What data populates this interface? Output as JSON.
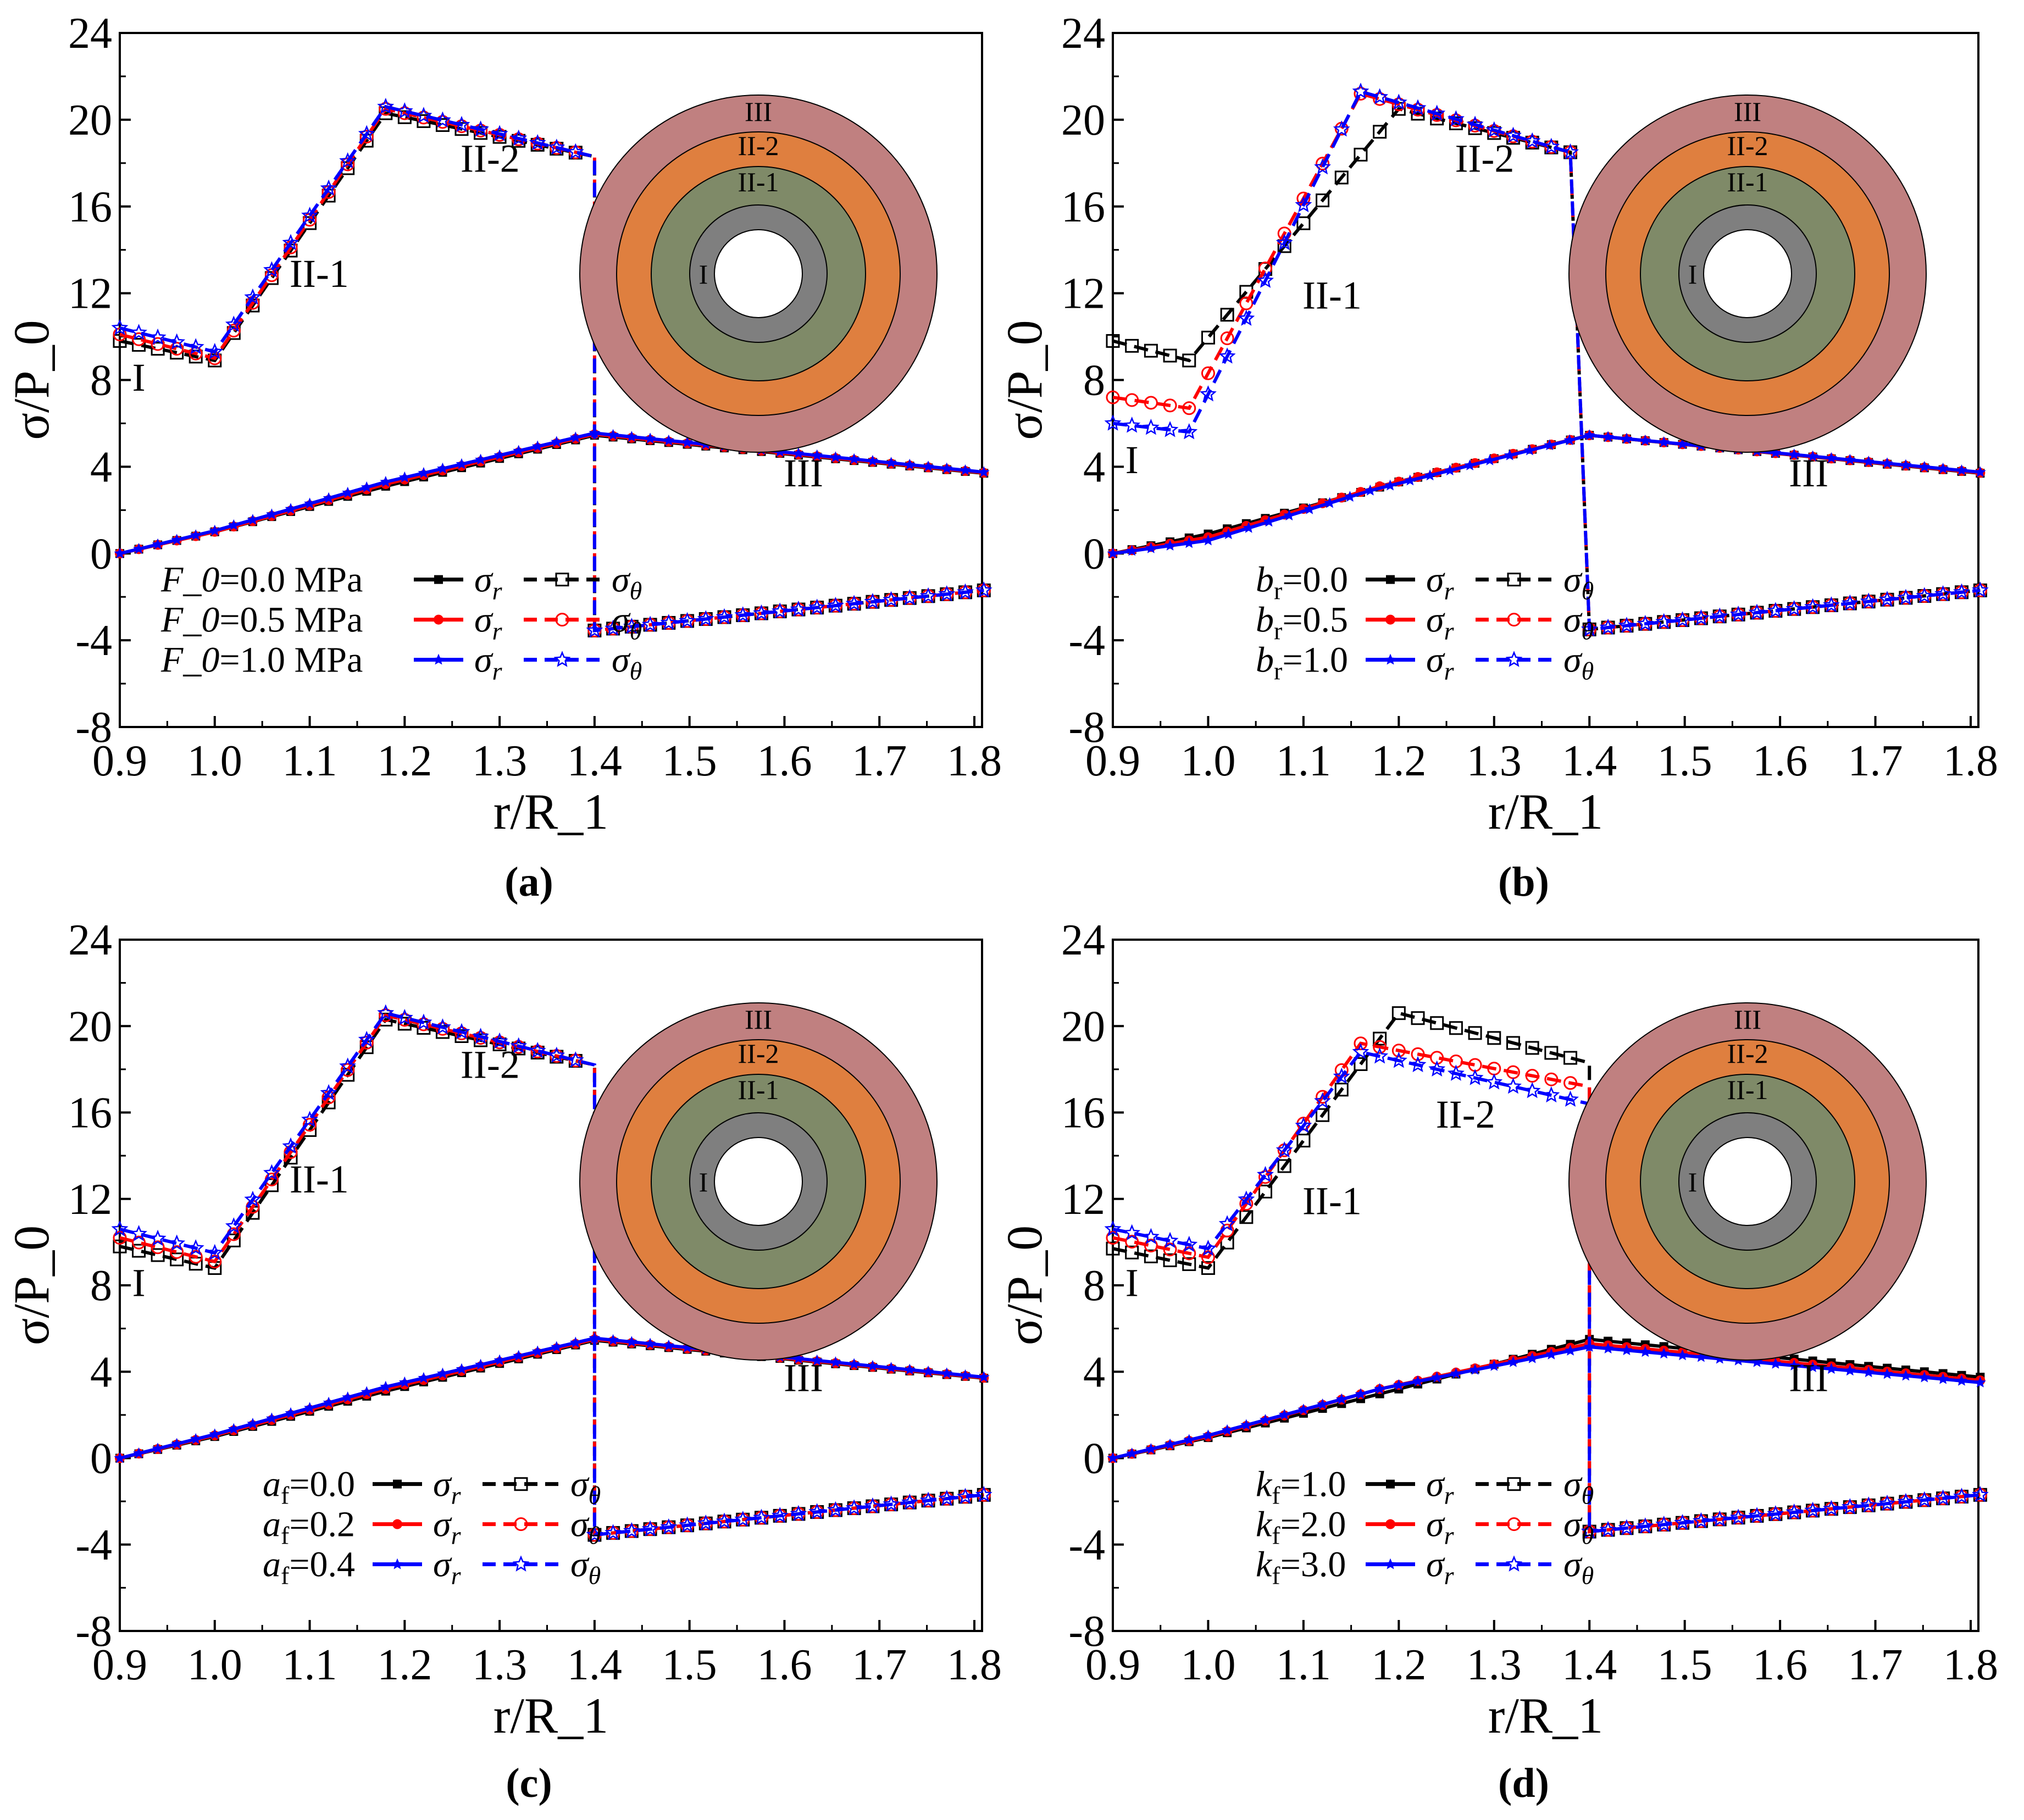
{
  "colors": {
    "black": "#000000",
    "red": "#ff0000",
    "blue": "#0000ff",
    "ring_III": "#c08080",
    "ring_II2": "#df7f3f",
    "ring_II1": "#7f8a68",
    "ring_I": "#7f7f7f"
  },
  "chart_data": [
    {
      "id": "a",
      "type": "line",
      "caption": "(a)",
      "xlabel": "r/R_1",
      "ylabel": "σ/P_0",
      "xlim": [
        0.9,
        1.8
      ],
      "ylim": [
        -8,
        24
      ],
      "xticks": [
        "0.9",
        "1.0",
        "1.1",
        "1.2",
        "1.3",
        "1.4",
        "1.5",
        "1.6",
        "1.7",
        "1.8"
      ],
      "yticks": [
        "-8",
        "-4",
        "0",
        "4",
        "8",
        "12",
        "16",
        "20",
        "24"
      ],
      "regions": [
        "I",
        "II-1",
        "II-2",
        "III"
      ],
      "legend": {
        "position": "bottom-left",
        "param": "F_0",
        "sub": "",
        "sr": "σ",
        "sr_sub": "r",
        "st": "σ",
        "st_sub": "θ",
        "entries": [
          {
            "value": "=0.0 MPa"
          },
          {
            "value": "=0.5 MPa"
          },
          {
            "value": "=1.0 MPa"
          }
        ]
      },
      "series": [
        {
          "name": "F_0=0.0 MPa",
          "color": "#000000",
          "marker": "square",
          "sigma_r": {
            "x": [
              0.9,
              1.0,
              1.18,
              1.4,
              1.81
            ],
            "y": [
              0,
              1.0,
              3.1,
              5.45,
              3.7
            ]
          },
          "sigma_theta": {
            "x": [
              0.9,
              1.0,
              1.18,
              1.4,
              1.4,
              1.81
            ],
            "y": [
              9.8,
              8.9,
              20.3,
              18.3,
              -3.55,
              -1.7
            ]
          }
        },
        {
          "name": "F_0=0.5 MPa",
          "color": "#ff0000",
          "marker": "circle",
          "sigma_r": {
            "x": [
              0.9,
              1.0,
              1.18,
              1.4,
              1.81
            ],
            "y": [
              0,
              1.0,
              3.2,
              5.5,
              3.72
            ]
          },
          "sigma_theta": {
            "x": [
              0.9,
              1.0,
              1.18,
              1.4,
              1.4,
              1.81
            ],
            "y": [
              10.1,
              9.0,
              20.5,
              18.3,
              -3.55,
              -1.7
            ]
          }
        },
        {
          "name": "F_0=1.0 MPa",
          "color": "#0000ff",
          "marker": "star",
          "sigma_r": {
            "x": [
              0.9,
              1.0,
              1.18,
              1.4,
              1.81
            ],
            "y": [
              0,
              1.05,
              3.3,
              5.55,
              3.75
            ]
          },
          "sigma_theta": {
            "x": [
              0.9,
              1.0,
              1.18,
              1.4,
              1.4,
              1.81
            ],
            "y": [
              10.4,
              9.3,
              20.6,
              18.3,
              -3.55,
              -1.7
            ]
          }
        }
      ]
    },
    {
      "id": "b",
      "type": "line",
      "caption": "(b)",
      "xlabel": "r/R_1",
      "ylabel": "σ/P_0",
      "xlim": [
        0.9,
        1.8
      ],
      "ylim": [
        -8,
        24
      ],
      "xticks": [
        "0.9",
        "1.0",
        "1.1",
        "1.2",
        "1.3",
        "1.4",
        "1.5",
        "1.6",
        "1.7",
        "1.8"
      ],
      "yticks": [
        "-8",
        "-4",
        "0",
        "4",
        "8",
        "12",
        "16",
        "20",
        "24"
      ],
      "regions": [
        "I",
        "II-1",
        "II-2",
        "III"
      ],
      "legend": {
        "position": "bottom-center",
        "param": "b",
        "sub": "r",
        "sr": "σ",
        "sr_sub": "r",
        "st": "σ",
        "st_sub": "θ",
        "entries": [
          {
            "value": "=0.0"
          },
          {
            "value": "=0.5"
          },
          {
            "value": "=1.0"
          }
        ]
      },
      "series": [
        {
          "name": "b_r=0.0",
          "color": "#000000",
          "marker": "square",
          "sigma_r": {
            "x": [
              0.9,
              1.0,
              1.2,
              1.4,
              1.81
            ],
            "y": [
              0,
              0.9,
              3.3,
              5.45,
              3.7
            ]
          },
          "sigma_theta": {
            "x": [
              0.9,
              0.98,
              1.2,
              1.38,
              1.4,
              1.81
            ],
            "y": [
              9.8,
              8.9,
              20.5,
              18.5,
              -3.5,
              -1.7
            ]
          }
        },
        {
          "name": "b_r=0.5",
          "color": "#ff0000",
          "marker": "circle",
          "sigma_r": {
            "x": [
              0.9,
              1.0,
              1.18,
              1.4,
              1.81
            ],
            "y": [
              0,
              0.75,
              3.1,
              5.45,
              3.72
            ]
          },
          "sigma_theta": {
            "x": [
              0.9,
              0.98,
              1.16,
              1.38,
              1.4,
              1.81
            ],
            "y": [
              7.2,
              6.7,
              21.2,
              18.5,
              -3.5,
              -1.7
            ]
          }
        },
        {
          "name": "b_r=1.0",
          "color": "#0000ff",
          "marker": "star",
          "sigma_r": {
            "x": [
              0.9,
              1.0,
              1.17,
              1.4,
              1.81
            ],
            "y": [
              0,
              0.6,
              2.9,
              5.45,
              3.75
            ]
          },
          "sigma_theta": {
            "x": [
              0.9,
              0.98,
              1.16,
              1.38,
              1.4,
              1.81
            ],
            "y": [
              6.0,
              5.6,
              21.3,
              18.5,
              -3.5,
              -1.7
            ]
          }
        }
      ]
    },
    {
      "id": "c",
      "type": "line",
      "caption": "(c)",
      "xlabel": "r/R_1",
      "ylabel": "σ/P_0",
      "xlim": [
        0.9,
        1.8
      ],
      "ylim": [
        -8,
        24
      ],
      "xticks": [
        "0.9",
        "1.0",
        "1.1",
        "1.2",
        "1.3",
        "1.4",
        "1.5",
        "1.6",
        "1.7",
        "1.8"
      ],
      "yticks": [
        "-8",
        "-4",
        "0",
        "4",
        "8",
        "12",
        "16",
        "20",
        "24"
      ],
      "regions": [
        "I",
        "II-1",
        "II-2",
        "III"
      ],
      "legend": {
        "position": "bottom-center",
        "param": "a",
        "sub": "f",
        "sr": "σ",
        "sr_sub": "r",
        "st": "σ",
        "st_sub": "θ",
        "entries": [
          {
            "value": "=0.0"
          },
          {
            "value": "=0.2"
          },
          {
            "value": "=0.4"
          }
        ]
      },
      "series": [
        {
          "name": "a_f=0.0",
          "color": "#000000",
          "marker": "square",
          "sigma_r": {
            "x": [
              0.9,
              1.0,
              1.18,
              1.4,
              1.81
            ],
            "y": [
              0,
              1.0,
              3.1,
              5.45,
              3.7
            ]
          },
          "sigma_theta": {
            "x": [
              0.9,
              1.0,
              1.18,
              1.4,
              1.4,
              1.81
            ],
            "y": [
              9.8,
              8.8,
              20.3,
              18.2,
              -3.55,
              -1.7
            ]
          }
        },
        {
          "name": "a_f=0.2",
          "color": "#ff0000",
          "marker": "circle",
          "sigma_r": {
            "x": [
              0.9,
              1.0,
              1.18,
              1.4,
              1.81
            ],
            "y": [
              0,
              1.05,
              3.2,
              5.5,
              3.72
            ]
          },
          "sigma_theta": {
            "x": [
              0.9,
              1.0,
              1.18,
              1.4,
              1.4,
              1.81
            ],
            "y": [
              10.2,
              9.1,
              20.5,
              18.2,
              -3.55,
              -1.7
            ]
          }
        },
        {
          "name": "a_f=0.4",
          "color": "#0000ff",
          "marker": "star",
          "sigma_r": {
            "x": [
              0.9,
              1.0,
              1.18,
              1.4,
              1.81
            ],
            "y": [
              0,
              1.1,
              3.3,
              5.55,
              3.75
            ]
          },
          "sigma_theta": {
            "x": [
              0.9,
              1.0,
              1.18,
              1.4,
              1.4,
              1.81
            ],
            "y": [
              10.6,
              9.5,
              20.6,
              18.2,
              -3.55,
              -1.7
            ]
          }
        }
      ]
    },
    {
      "id": "d",
      "type": "line",
      "caption": "(d)",
      "xlabel": "r/R_1",
      "ylabel": "σ/P_0",
      "xlim": [
        0.9,
        1.8
      ],
      "ylim": [
        -8,
        24
      ],
      "xticks": [
        "0.9",
        "1.0",
        "1.1",
        "1.2",
        "1.3",
        "1.4",
        "1.5",
        "1.6",
        "1.7",
        "1.8"
      ],
      "yticks": [
        "-8",
        "-4",
        "0",
        "4",
        "8",
        "12",
        "16",
        "20",
        "24"
      ],
      "regions": [
        "I",
        "II-1",
        "II-2",
        "III"
      ],
      "legend": {
        "position": "bottom-center",
        "param": "k",
        "sub": "f",
        "sr": "σ",
        "sr_sub": "r",
        "st": "σ",
        "st_sub": "θ",
        "entries": [
          {
            "value": "=1.0"
          },
          {
            "value": "=2.0"
          },
          {
            "value": "=3.0"
          }
        ]
      },
      "series": [
        {
          "name": "k_f=1.0",
          "color": "#000000",
          "marker": "square",
          "sigma_r": {
            "x": [
              0.9,
              1.0,
              1.2,
              1.4,
              1.81
            ],
            "y": [
              0,
              0.95,
              3.2,
              5.5,
              3.75
            ]
          },
          "sigma_theta": {
            "x": [
              0.9,
              1.0,
              1.2,
              1.4,
              1.4,
              1.81
            ],
            "y": [
              9.7,
              8.8,
              20.6,
              18.3,
              -3.4,
              -1.7
            ]
          }
        },
        {
          "name": "k_f=2.0",
          "color": "#ff0000",
          "marker": "circle",
          "sigma_r": {
            "x": [
              0.9,
              1.0,
              1.18,
              1.4,
              1.81
            ],
            "y": [
              0,
              1.0,
              3.2,
              5.3,
              3.6
            ]
          },
          "sigma_theta": {
            "x": [
              0.9,
              1.0,
              1.16,
              1.4,
              1.4,
              1.81
            ],
            "y": [
              10.2,
              9.3,
              19.2,
              17.2,
              -3.4,
              -1.7
            ]
          }
        },
        {
          "name": "k_f=3.0",
          "color": "#0000ff",
          "marker": "star",
          "sigma_r": {
            "x": [
              0.9,
              1.0,
              1.18,
              1.4,
              1.81
            ],
            "y": [
              0,
              1.05,
              3.2,
              5.15,
              3.5
            ]
          },
          "sigma_theta": {
            "x": [
              0.9,
              1.0,
              1.16,
              1.4,
              1.4,
              1.81
            ],
            "y": [
              10.6,
              9.7,
              18.8,
              16.4,
              -3.4,
              -1.7
            ]
          }
        }
      ]
    }
  ]
}
